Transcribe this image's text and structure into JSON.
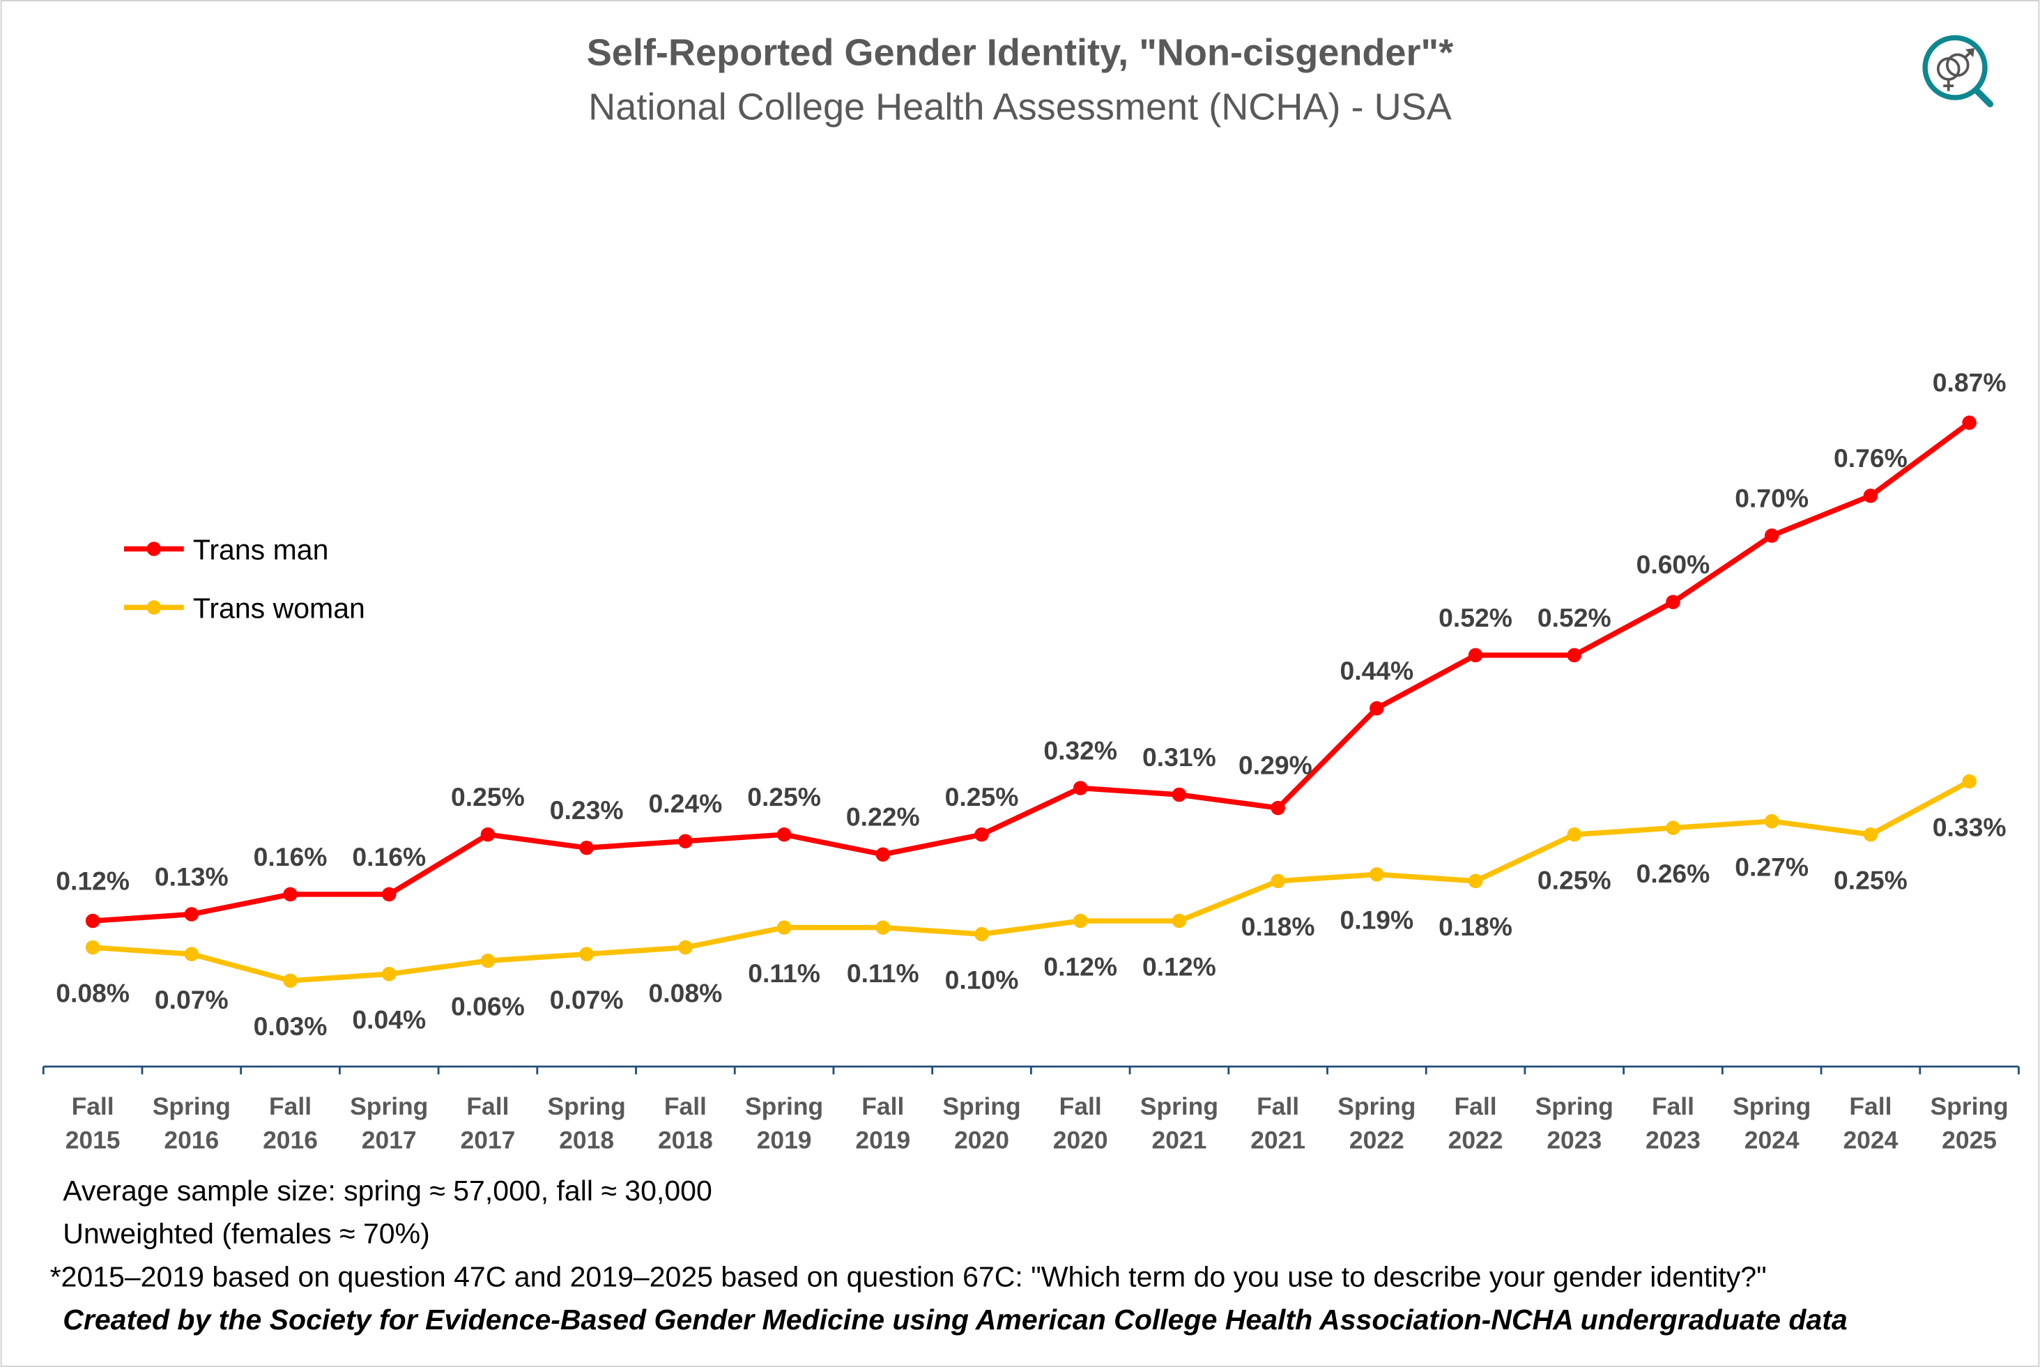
{
  "chart_data": {
    "type": "line",
    "title": "Self-Reported Gender Identity, \"Non-cisgender\"*",
    "subtitle": "National College Health Assessment (NCHA) - USA",
    "xlabel": "",
    "ylabel": "",
    "ylim": [
      0,
      0.9
    ],
    "grid": false,
    "legend_position": "left-middle",
    "categories": [
      [
        "Fall",
        "2015"
      ],
      [
        "Spring",
        "2016"
      ],
      [
        "Fall",
        "2016"
      ],
      [
        "Spring",
        "2017"
      ],
      [
        "Fall",
        "2017"
      ],
      [
        "Spring",
        "2018"
      ],
      [
        "Fall",
        "2018"
      ],
      [
        "Spring",
        "2019"
      ],
      [
        "Fall",
        "2019"
      ],
      [
        "Spring",
        "2020"
      ],
      [
        "Fall",
        "2020"
      ],
      [
        "Spring",
        "2021"
      ],
      [
        "Fall",
        "2021"
      ],
      [
        "Spring",
        "2022"
      ],
      [
        "Fall",
        "2022"
      ],
      [
        "Spring",
        "2023"
      ],
      [
        "Fall",
        "2023"
      ],
      [
        "Spring",
        "2024"
      ],
      [
        "Fall",
        "2024"
      ],
      [
        "Spring",
        "2025"
      ]
    ],
    "series": [
      {
        "name": "Trans man",
        "color": "#FF0000",
        "unit": "%",
        "values": [
          0.12,
          0.13,
          0.16,
          0.16,
          0.25,
          0.23,
          0.24,
          0.25,
          0.22,
          0.25,
          0.32,
          0.31,
          0.29,
          0.44,
          0.52,
          0.52,
          0.6,
          0.7,
          0.76,
          0.87
        ],
        "labels": [
          "0.12%",
          "0.13%",
          "0.16%",
          "0.16%",
          "0.25%",
          "0.23%",
          "0.24%",
          "0.25%",
          "0.22%",
          "0.25%",
          "0.32%",
          "0.31%",
          "0.29%",
          "0.44%",
          "0.52%",
          "0.52%",
          "0.60%",
          "0.70%",
          "0.76%",
          "0.87%"
        ]
      },
      {
        "name": "Trans woman",
        "color": "#FFC000",
        "unit": "%",
        "values": [
          0.08,
          0.07,
          0.03,
          0.04,
          0.06,
          0.07,
          0.08,
          0.11,
          0.11,
          0.1,
          0.12,
          0.12,
          0.18,
          0.19,
          0.18,
          0.25,
          0.26,
          0.27,
          0.25,
          0.33
        ],
        "labels": [
          "0.08%",
          "0.07%",
          "0.03%",
          "0.04%",
          "0.06%",
          "0.07%",
          "0.08%",
          "0.11%",
          "0.11%",
          "0.10%",
          "0.12%",
          "0.12%",
          "0.18%",
          "0.19%",
          "0.18%",
          "0.25%",
          "0.26%",
          "0.27%",
          "0.25%",
          "0.33%"
        ]
      }
    ]
  },
  "notes": {
    "sample_size": "Average sample size: spring ≈ 57,000, fall ≈ 30,000",
    "weighting": "Unweighted (females ≈ 70%)",
    "questions": "*2015–2019 based on question 47C and 2019–2025 based on question 67C: \"Which term do you use to describe your gender identity?\"",
    "credit": "Created by the Society for Evidence-Based Gender Medicine using American College Health Association-NCHA undergraduate data"
  },
  "logo": {
    "icon": "magnifier-gender-symbols-icon",
    "color": "#0E8790"
  }
}
